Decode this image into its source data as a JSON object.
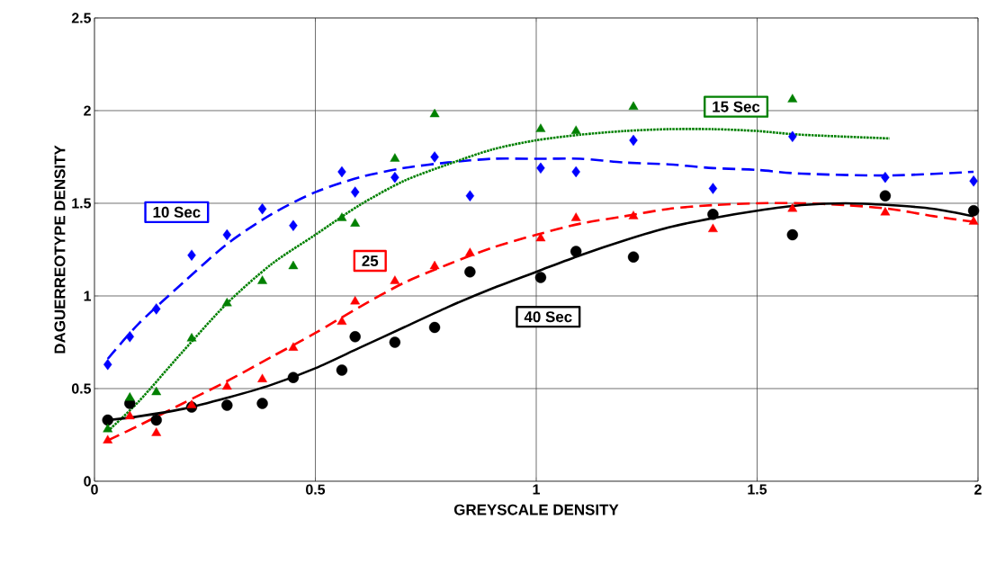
{
  "chart_data": {
    "type": "scatter",
    "xlabel": "GREYSCALE DENSITY",
    "ylabel": "DAGUERREOTYPE DENSITY",
    "xlim": [
      0,
      2
    ],
    "ylim": [
      0,
      2.5
    ],
    "xticks": [
      0,
      0.5,
      1,
      1.5,
      2
    ],
    "yticks": [
      0,
      0.5,
      1,
      1.5,
      2,
      2.5
    ],
    "grid": true,
    "series": [
      {
        "marker": "diamond",
        "color": "#0000ff",
        "x": [
          0.03,
          0.08,
          0.14,
          0.22,
          0.3,
          0.38,
          0.45,
          0.56,
          0.59,
          0.68,
          0.77,
          0.85,
          1.01,
          1.09,
          1.22,
          1.4,
          1.58,
          1.79,
          1.99
        ],
        "values": [
          0.63,
          0.78,
          0.93,
          1.22,
          1.33,
          1.47,
          1.38,
          1.67,
          1.56,
          1.64,
          1.75,
          1.54,
          1.69,
          1.67,
          1.84,
          1.58,
          1.86,
          1.64,
          1.62
        ]
      },
      {
        "marker": "triangle",
        "color": "#008000",
        "x": [
          0.03,
          0.08,
          0.14,
          0.22,
          0.3,
          0.38,
          0.45,
          0.56,
          0.59,
          0.68,
          0.77,
          1.01,
          1.09,
          1.22,
          1.58
        ],
        "values": [
          0.28,
          0.45,
          0.48,
          0.77,
          0.96,
          1.08,
          1.16,
          1.42,
          1.39,
          1.74,
          1.98,
          1.9,
          1.89,
          2.02,
          2.06
        ]
      },
      {
        "marker": "triangle",
        "color": "#ff0000",
        "x": [
          0.03,
          0.08,
          0.14,
          0.22,
          0.3,
          0.38,
          0.45,
          0.56,
          0.59,
          0.68,
          0.77,
          0.85,
          1.01,
          1.09,
          1.22,
          1.4,
          1.58,
          1.79,
          1.99
        ],
        "values": [
          0.22,
          0.35,
          0.26,
          0.41,
          0.51,
          0.55,
          0.72,
          0.86,
          0.97,
          1.08,
          1.16,
          1.23,
          1.31,
          1.42,
          1.43,
          1.36,
          1.47,
          1.45,
          1.4
        ]
      },
      {
        "marker": "circle",
        "color": "#000000",
        "x": [
          0.03,
          0.08,
          0.14,
          0.22,
          0.3,
          0.38,
          0.45,
          0.56,
          0.59,
          0.68,
          0.77,
          0.85,
          1.01,
          1.09,
          1.22,
          1.4,
          1.58,
          1.79,
          1.99
        ],
        "values": [
          0.33,
          0.42,
          0.33,
          0.4,
          0.41,
          0.42,
          0.56,
          0.6,
          0.78,
          0.75,
          0.83,
          1.13,
          1.1,
          1.24,
          1.21,
          1.44,
          1.33,
          1.54,
          1.46
        ]
      },
      {
        "type": "line",
        "name": "10 Sec",
        "marker": "none",
        "line_style": "dashed",
        "color": "#0000ff",
        "x": [
          0.03,
          0.1,
          0.2,
          0.3,
          0.4,
          0.5,
          0.6,
          0.7,
          0.8,
          0.9,
          1.0,
          1.1,
          1.2,
          1.3,
          1.4,
          1.5,
          1.6,
          1.8,
          1.99
        ],
        "values": [
          0.66,
          0.85,
          1.07,
          1.28,
          1.44,
          1.56,
          1.64,
          1.69,
          1.72,
          1.74,
          1.74,
          1.74,
          1.72,
          1.71,
          1.69,
          1.68,
          1.66,
          1.65,
          1.67
        ]
      },
      {
        "type": "line",
        "name": "15 Sec",
        "marker": "none",
        "line_style": "dotted",
        "color": "#008000",
        "x": [
          0.03,
          0.1,
          0.2,
          0.3,
          0.4,
          0.5,
          0.6,
          0.7,
          0.8,
          0.9,
          1.0,
          1.1,
          1.2,
          1.3,
          1.4,
          1.5,
          1.6,
          1.8
        ],
        "values": [
          0.27,
          0.43,
          0.7,
          0.96,
          1.17,
          1.33,
          1.49,
          1.62,
          1.71,
          1.79,
          1.84,
          1.87,
          1.89,
          1.9,
          1.9,
          1.89,
          1.87,
          1.85
        ]
      },
      {
        "type": "line",
        "name": "25",
        "marker": "none",
        "line_style": "dashed",
        "color": "#ff0000",
        "x": [
          0.03,
          0.1,
          0.2,
          0.3,
          0.4,
          0.5,
          0.6,
          0.7,
          0.8,
          0.9,
          1.0,
          1.1,
          1.2,
          1.3,
          1.4,
          1.5,
          1.6,
          1.7,
          1.8,
          1.9,
          1.99
        ],
        "values": [
          0.22,
          0.3,
          0.42,
          0.54,
          0.67,
          0.8,
          0.94,
          1.07,
          1.17,
          1.26,
          1.33,
          1.39,
          1.43,
          1.47,
          1.49,
          1.5,
          1.5,
          1.49,
          1.47,
          1.43,
          1.4
        ]
      },
      {
        "type": "line",
        "name": "40 Sec",
        "marker": "none",
        "line_style": "solid",
        "color": "#000000",
        "x": [
          0.03,
          0.1,
          0.2,
          0.3,
          0.4,
          0.5,
          0.6,
          0.7,
          0.8,
          0.9,
          1.0,
          1.1,
          1.2,
          1.3,
          1.4,
          1.5,
          1.6,
          1.7,
          1.8,
          1.9,
          1.99
        ],
        "values": [
          0.33,
          0.35,
          0.39,
          0.45,
          0.52,
          0.61,
          0.72,
          0.83,
          0.94,
          1.04,
          1.13,
          1.22,
          1.3,
          1.37,
          1.42,
          1.46,
          1.49,
          1.5,
          1.49,
          1.47,
          1.43
        ]
      }
    ]
  }
}
